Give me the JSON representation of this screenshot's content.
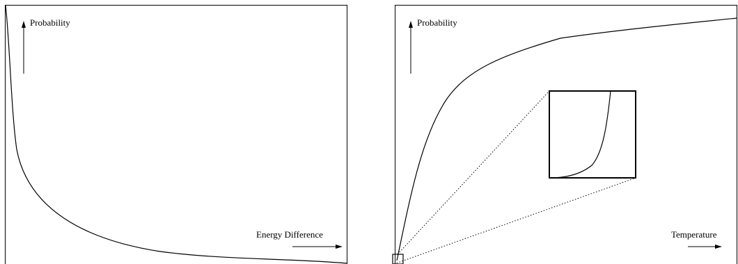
{
  "left_panel": {
    "y_label": "Probability",
    "x_label": "Energy Difference"
  },
  "right_panel": {
    "y_label": "Probability",
    "x_label": "Temperature"
  }
}
